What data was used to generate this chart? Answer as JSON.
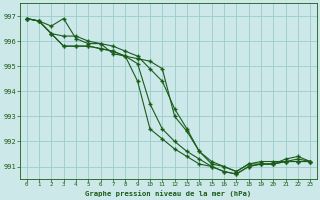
{
  "title": "Graphe pression niveau de la mer (hPa)",
  "background_color": "#cce8e8",
  "grid_color": "#99cccc",
  "line_color": "#1a5c1a",
  "x_ticks": [
    0,
    1,
    2,
    3,
    4,
    5,
    6,
    7,
    8,
    9,
    10,
    11,
    12,
    13,
    14,
    15,
    16,
    17,
    18,
    19,
    20,
    21,
    22,
    23
  ],
  "ylim": [
    990.5,
    997.5
  ],
  "yticks": [
    991,
    992,
    993,
    994,
    995,
    996,
    997
  ],
  "series": [
    [
      996.9,
      996.8,
      996.6,
      996.9,
      996.1,
      995.9,
      995.9,
      995.5,
      995.4,
      995.3,
      995.2,
      994.9,
      993.0,
      992.4,
      991.6,
      991.1,
      991.0,
      990.8,
      991.1,
      991.1,
      991.1,
      991.2,
      991.2,
      991.2
    ],
    [
      996.9,
      996.8,
      996.3,
      996.2,
      996.2,
      996.0,
      995.9,
      995.8,
      995.6,
      995.4,
      994.9,
      994.4,
      993.3,
      992.5,
      991.6,
      991.2,
      991.0,
      990.8,
      991.1,
      991.2,
      991.2,
      991.2,
      991.2,
      991.2
    ],
    [
      996.9,
      996.8,
      996.3,
      995.8,
      995.8,
      995.8,
      995.7,
      995.6,
      995.4,
      995.1,
      993.5,
      992.5,
      992.0,
      991.6,
      991.3,
      991.0,
      990.8,
      990.7,
      991.0,
      991.1,
      991.1,
      991.2,
      991.3,
      991.2
    ],
    [
      996.9,
      996.8,
      996.3,
      995.8,
      995.8,
      995.8,
      995.7,
      995.6,
      995.4,
      994.4,
      992.5,
      992.1,
      991.7,
      991.4,
      991.1,
      991.0,
      990.8,
      990.7,
      991.0,
      991.1,
      991.1,
      991.3,
      991.4,
      991.2
    ]
  ]
}
